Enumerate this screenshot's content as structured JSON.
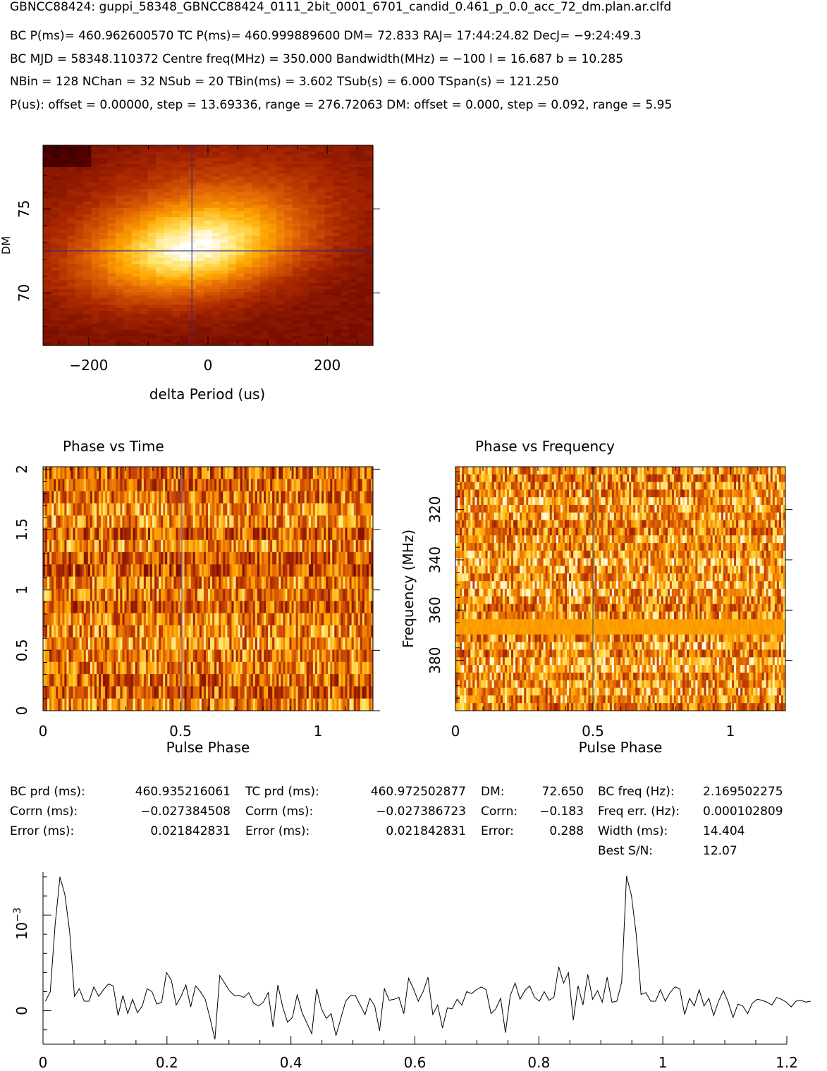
{
  "header": {
    "title": "GBNCC88424: guppi_58348_GBNCC88424_0111_2bit_0001_6701_candid_0.461_p_0.0_acc_72_dm.plan.ar.clfd",
    "line1": "BC P(ms)= 460.962600570 TC P(ms)= 460.999889600 DM= 72.833 RAJ= 17:44:24.82 DecJ= −9:24:49.3",
    "line2": "BC MJD = 58348.110372 Centre freq(MHz) = 350.000 Bandwidth(MHz) = −100 l = 16.687 b = 10.285",
    "line3": "NBin = 128 NChan = 32 NSub = 20 TBin(ms) = 3.602 TSub(s) = 6.000 TSpan(s) = 121.250",
    "line4": "P(us): offset = 0.00000, step = 13.69336, range = 276.72063 DM: offset = 0.000, step = 0.092, range = 5.95"
  },
  "stats": {
    "c1": {
      "l1": "BC prd (ms):",
      "v1": "460.935216061",
      "l2": "Corrn (ms):",
      "v2": "−0.027384508",
      "l3": "Error (ms):",
      "v3": "0.021842831"
    },
    "c2": {
      "l1": "TC prd (ms):",
      "v1": "460.972502877",
      "l2": "Corrn (ms):",
      "v2": "−0.027386723",
      "l3": "Error (ms):",
      "v3": "0.021842831"
    },
    "c3": {
      "l1": "DM:",
      "v1": "72.650",
      "l2": "Corrn:",
      "v2": "−0.183",
      "l3": "Error:",
      "v3": "0.288"
    },
    "c4": {
      "l1": "BC freq (Hz):",
      "v1": "2.169502275",
      "l2": "Freq err. (Hz):",
      "v2": "0.000102809",
      "l3": "Width (ms):",
      "v3": "14.404",
      "l4": "Best S/N:",
      "v4": "12.07"
    }
  },
  "chart_data": [
    {
      "type": "heatmap",
      "name": "dm-period-search",
      "xlabel": "delta Period (us)",
      "ylabel": "DM",
      "xlim": [
        -276.72,
        276.72
      ],
      "ylim": [
        66.88,
        78.78
      ],
      "xticks": [
        -200,
        0,
        200
      ],
      "yticks": [
        70,
        75
      ],
      "peak": {
        "x": -27,
        "y": 72.5
      },
      "colormap": [
        "#000000",
        "#5a0000",
        "#a52a00",
        "#e06000",
        "#ffa000",
        "#ffe060",
        "#ffffff"
      ]
    },
    {
      "type": "heatmap",
      "name": "phase-vs-time",
      "title": "Phase vs Time",
      "xlabel": "Pulse Phase",
      "ylabel": "",
      "xlim": [
        0,
        1.2
      ],
      "ylim": [
        0,
        2.02
      ],
      "xticks": [
        0,
        0.5,
        1
      ],
      "yticks": [
        0,
        0.5,
        1,
        1.5,
        2
      ],
      "cursor_x": 0.505,
      "nsub": 20
    },
    {
      "type": "heatmap",
      "name": "phase-vs-frequency",
      "title": "Phase vs Frequency",
      "xlabel": "Pulse Phase",
      "ylabel": "Frequency (MHz)",
      "xlim": [
        0,
        1.2
      ],
      "ylim": [
        400,
        303
      ],
      "xticks": [
        0,
        0.5,
        1
      ],
      "yticks": [
        320,
        340,
        360,
        380
      ],
      "cursor_x": 0.5,
      "nchan": 32,
      "flat_band_mhz": [
        365,
        369
      ]
    },
    {
      "type": "line",
      "name": "pulse-profile",
      "xlabel": "",
      "ylabel": "10^-3",
      "ylabel_base": "10",
      "ylabel_exp": "−3",
      "xlim": [
        0,
        1.2
      ],
      "ylim": [
        -0.0035,
        0.0145
      ],
      "xticks": [
        0,
        0.2,
        0.4,
        0.6,
        0.8,
        1,
        1.2
      ],
      "yticks": [
        0
      ],
      "x_step": 0.0078125,
      "y": [
        0.001,
        0.002,
        0.009,
        0.014,
        0.0122,
        0.0083,
        0.0015,
        0.0023,
        0.001,
        0.001,
        0.0025,
        0.0015,
        0.0022,
        0.0028,
        0.0026,
        -0.0005,
        0.0016,
        -0.0003,
        0.0012,
        -0.0002,
        0.0005,
        0.0023,
        0.002,
        0.0007,
        0.0009,
        0.004,
        0.0032,
        0.0006,
        0.0015,
        0.0027,
        0.0004,
        0.0026,
        0.002,
        0.0012,
        -0.0008,
        -0.003,
        0.0037,
        0.0029,
        0.0021,
        0.0016,
        0.0016,
        0.0014,
        0.0019,
        0.0008,
        0.0005,
        0.0009,
        0.0019,
        -0.0017,
        0.0027,
        0.0004,
        -0.0012,
        -0.0007,
        0.0017,
        -0.0002,
        -0.0013,
        -0.0024,
        0.0023,
        0.0002,
        -0.0008,
        -0.0003,
        -0.0026,
        -0.0008,
        0.001,
        0.0016,
        0.0016,
        0.0006,
        -0.0004,
        0.0013,
        0.0005,
        -0.0021,
        0.0023,
        0.0011,
        0.0012,
        0.0014,
        -0.0003,
        0.0034,
        0.0023,
        0.001,
        0.002,
        0.0035,
        -0.0004,
        0.0006,
        -0.0018,
        0.0003,
        0.0002,
        0.0012,
        0.0006,
        0.002,
        0.0018,
        0.0022,
        0.0025,
        0.0022,
        -0.0003,
        0.0002,
        0.0013,
        -0.0023,
        0.0016,
        0.0029,
        0.0012,
        0.0021,
        0.0026,
        0.0014,
        0.001,
        0.002,
        0.0011,
        0.0014,
        0.0046,
        0.0029,
        0.004,
        -0.001,
        0.0026,
        0.0006,
        0.0038,
        0.0012,
        0.0021,
        0.0009,
        0.0035,
        0.0009,
        0.001,
        0.003,
        0.0141,
        0.0121,
        0.008,
        0.0017,
        0.0019,
        0.001,
        0.001,
        0.0022,
        0.001,
        0.0019,
        0.0025,
        0.0023,
        -0.0004,
        0.0013,
        0.0005,
        0.0022,
        0.0005,
        0.0013,
        -0.0005,
        0.001,
        0.0021,
        0.0009,
        -0.0007,
        0.0007,
        0.0005,
        -0.0003,
        0.0008,
        0.0012,
        0.0011,
        0.0009,
        0.0006,
        0.0014,
        0.0012,
        0.0009,
        0.0004,
        0.001,
        0.0011,
        0.0009,
        0.001
      ]
    }
  ]
}
